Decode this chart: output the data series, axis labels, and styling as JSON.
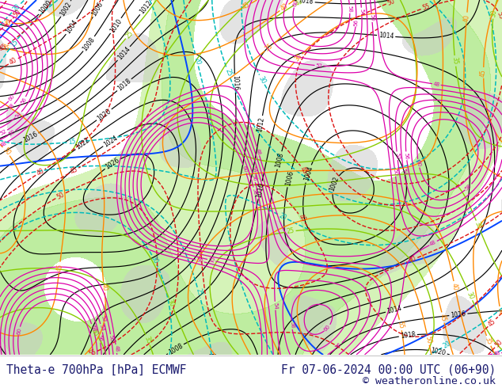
{
  "title_left": "Theta-e 700hPa [hPa] ECMWF",
  "title_right": "Fr 07-06-2024 00:00 UTC (06+90)",
  "copyright": "© weatheronline.co.uk",
  "bg_color": "#ffffff",
  "map_bg": "#f5f5f5",
  "text_color": "#1a1a6e",
  "bottom_bar_height": 42,
  "font_size_bottom": 10.5,
  "font_size_copyright": 9.5
}
